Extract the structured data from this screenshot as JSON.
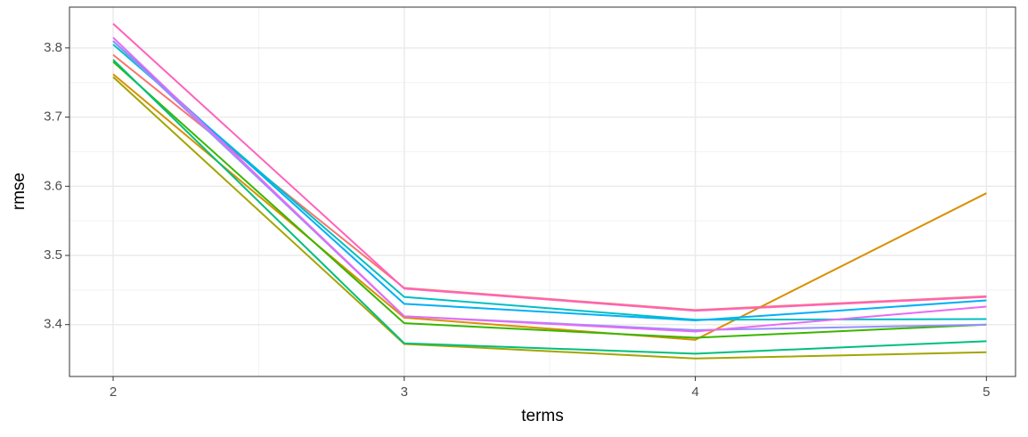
{
  "chart_data": {
    "type": "line",
    "x_label": "terms",
    "y_label": "rmse",
    "x": [
      2,
      3,
      4,
      5
    ],
    "xlim": [
      1.85,
      5.1
    ],
    "xticks": [
      2,
      3,
      4,
      5
    ],
    "ylim": [
      3.325,
      3.859
    ],
    "yticks": [
      3.4,
      3.5,
      3.6,
      3.7,
      3.8
    ],
    "grid": true,
    "series": [
      {
        "color": "#F8766D",
        "values": [
          3.79,
          3.453,
          3.421,
          3.441
        ]
      },
      {
        "color": "#D89000",
        "values": [
          3.762,
          3.41,
          3.378,
          3.59
        ]
      },
      {
        "color": "#A3A500",
        "values": [
          3.758,
          3.372,
          3.351,
          3.36
        ]
      },
      {
        "color": "#39B600",
        "values": [
          3.78,
          3.402,
          3.381,
          3.4
        ]
      },
      {
        "color": "#00BF7D",
        "values": [
          3.783,
          3.373,
          3.358,
          3.376
        ]
      },
      {
        "color": "#00BFC4",
        "values": [
          3.805,
          3.44,
          3.407,
          3.408
        ]
      },
      {
        "color": "#00B0F6",
        "values": [
          3.81,
          3.43,
          3.406,
          3.435
        ]
      },
      {
        "color": "#9590FF",
        "values": [
          3.81,
          3.412,
          3.392,
          3.4
        ]
      },
      {
        "color": "#E76BF3",
        "values": [
          3.815,
          3.412,
          3.39,
          3.426
        ]
      },
      {
        "color": "#FF62BC",
        "values": [
          3.835,
          3.452,
          3.42,
          3.44
        ]
      }
    ]
  }
}
